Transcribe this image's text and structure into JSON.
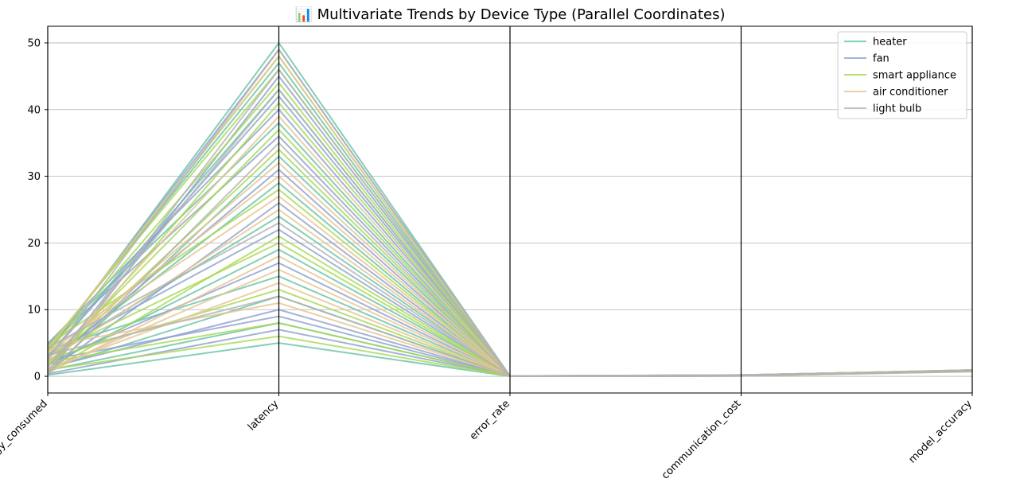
{
  "chart_data": {
    "type": "line",
    "subtype": "parallel-coordinates",
    "title": "📊 Multivariate Trends by Device Type (Parallel Coordinates)",
    "axes": [
      "energy_consumed",
      "latency",
      "error_rate",
      "communication_cost",
      "model_accuracy"
    ],
    "ylim": [
      -2.5,
      52.5
    ],
    "yticks": [
      0,
      10,
      20,
      30,
      40,
      50
    ],
    "grid": true,
    "legend_position": "top-right",
    "colors": {
      "heater": "#66c2a5",
      "fan": "#8da0cb",
      "smart appliance": "#a6d854",
      "air conditioner": "#e5c494",
      "light bulb": "#b3b3b3"
    },
    "series": [
      {
        "name": "heater",
        "lines": [
          [
            0.2,
            5,
            0.01,
            0.05,
            0.85
          ],
          [
            3.5,
            50,
            0.04,
            0.15,
            0.9
          ],
          [
            1.1,
            12,
            0.02,
            0.08,
            0.8
          ],
          [
            4.2,
            47,
            0.03,
            0.2,
            0.92
          ],
          [
            0.5,
            33,
            0.01,
            0.1,
            0.75
          ],
          [
            2.8,
            24,
            0.05,
            0.12,
            0.88
          ],
          [
            4.8,
            38,
            0.02,
            0.18,
            0.95
          ],
          [
            1.6,
            19,
            0.03,
            0.07,
            0.7
          ],
          [
            3.0,
            43,
            0.04,
            0.14,
            0.86
          ],
          [
            0.9,
            8,
            0.02,
            0.06,
            0.82
          ],
          [
            2.2,
            29,
            0.03,
            0.11,
            0.9
          ],
          [
            4.0,
            15,
            0.01,
            0.19,
            0.78
          ]
        ]
      },
      {
        "name": "fan",
        "lines": [
          [
            0.4,
            7,
            0.02,
            0.06,
            0.82
          ],
          [
            2.9,
            42,
            0.03,
            0.13,
            0.88
          ],
          [
            4.6,
            36,
            0.05,
            0.18,
            0.91
          ],
          [
            1.3,
            10,
            0.01,
            0.09,
            0.76
          ],
          [
            3.8,
            49,
            0.04,
            0.16,
            0.93
          ],
          [
            0.7,
            26,
            0.02,
            0.07,
            0.8
          ],
          [
            2.4,
            9,
            0.03,
            0.1,
            0.85
          ],
          [
            4.9,
            40,
            0.02,
            0.2,
            0.9
          ],
          [
            1.8,
            31,
            0.04,
            0.12,
            0.87
          ],
          [
            3.3,
            22,
            0.01,
            0.15,
            0.79
          ],
          [
            0.3,
            45,
            0.05,
            0.05,
            0.94
          ],
          [
            2.0,
            17,
            0.02,
            0.11,
            0.83
          ]
        ]
      },
      {
        "name": "smart appliance",
        "lines": [
          [
            1.0,
            6,
            0.01,
            0.07,
            0.81
          ],
          [
            3.6,
            44,
            0.04,
            0.14,
            0.92
          ],
          [
            0.6,
            21,
            0.02,
            0.08,
            0.77
          ],
          [
            4.4,
            46,
            0.03,
            0.19,
            0.9
          ],
          [
            2.1,
            8,
            0.05,
            0.1,
            0.86
          ],
          [
            1.5,
            34,
            0.02,
            0.09,
            0.84
          ],
          [
            3.1,
            20,
            0.03,
            0.13,
            0.89
          ],
          [
            4.7,
            28,
            0.01,
            0.17,
            0.93
          ],
          [
            0.8,
            41,
            0.04,
            0.06,
            0.74
          ],
          [
            2.6,
            13,
            0.02,
            0.12,
            0.88
          ],
          [
            1.9,
            37,
            0.03,
            0.1,
            0.8
          ],
          [
            3.9,
            48,
            0.05,
            0.16,
            0.95
          ]
        ]
      },
      {
        "name": "air conditioner",
        "lines": [
          [
            1.2,
            14,
            0.02,
            0.09,
            0.83
          ],
          [
            3.4,
            30,
            0.03,
            0.15,
            0.9
          ],
          [
            0.5,
            18,
            0.04,
            0.07,
            0.78
          ],
          [
            4.1,
            48,
            0.02,
            0.18,
            0.92
          ],
          [
            2.3,
            25,
            0.01,
            0.11,
            0.87
          ],
          [
            4.5,
            11,
            0.05,
            0.2,
            0.8
          ],
          [
            1.7,
            39,
            0.03,
            0.1,
            0.85
          ],
          [
            2.7,
            32,
            0.02,
            0.13,
            0.9
          ],
          [
            0.9,
            16,
            0.04,
            0.08,
            0.76
          ],
          [
            3.7,
            27,
            0.03,
            0.17,
            0.94
          ]
        ]
      },
      {
        "name": "light bulb",
        "lines": [
          [
            0.3,
            35,
            0.02,
            0.06,
            0.8
          ],
          [
            2.5,
            49,
            0.03,
            0.12,
            0.91
          ],
          [
            4.3,
            23,
            0.04,
            0.19,
            0.86
          ],
          [
            1.4,
            43,
            0.01,
            0.09,
            0.89
          ],
          [
            3.2,
            12,
            0.05,
            0.14,
            0.77
          ],
          [
            0.7,
            46,
            0.02,
            0.07,
            0.93
          ]
        ]
      }
    ]
  }
}
